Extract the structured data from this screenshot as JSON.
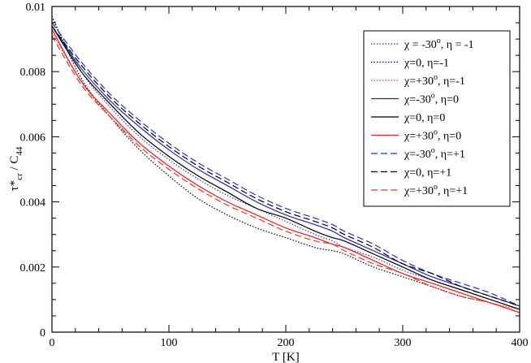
{
  "chart_data": {
    "type": "line",
    "xlabel": "T [K]",
    "ylabel_main": "τ*",
    "ylabel_sub": "cr",
    "ylabel_rest": " / C",
    "ylabel_sub2": "44",
    "xlim": [
      0,
      400
    ],
    "ylim": [
      0,
      0.01
    ],
    "x_ticks": [
      0,
      100,
      200,
      300,
      400
    ],
    "y_ticks": [
      0,
      0.002,
      0.004,
      0.006,
      0.008,
      0.01
    ],
    "x_tick_labels": [
      "0",
      "100",
      "200",
      "300",
      "400"
    ],
    "y_tick_labels": [
      "0",
      "0.002",
      "0.004",
      "0.006",
      "0.008",
      "0.01"
    ],
    "legend_position": "top-right",
    "grid": false,
    "x": [
      0,
      25,
      50,
      75,
      100,
      125,
      150,
      175,
      200,
      225,
      240,
      250,
      275,
      300,
      325,
      350,
      375,
      400
    ],
    "series": [
      {
        "name": "χ = -30°, η = -1",
        "color": "#3333cc",
        "dash": "dotted",
        "label_pre": "χ = -30",
        "label_post": ", η = -1",
        "values": [
          0.0096,
          0.008,
          0.0069,
          0.006,
          0.0053,
          0.0047,
          0.0042,
          0.0038,
          0.0034,
          0.003,
          0.0028,
          0.0026,
          0.0023,
          0.0019,
          0.0016,
          0.0013,
          0.001,
          0.0007
        ]
      },
      {
        "name": "χ=0, η=-1",
        "color": "#000000",
        "dash": "dotted",
        "label_pre": "χ=0, η=-1",
        "label_post": "",
        "values": [
          0.0097,
          0.0078,
          0.0066,
          0.0056,
          0.0048,
          0.0041,
          0.0036,
          0.0032,
          0.0029,
          0.0026,
          0.0025,
          0.0024,
          0.002,
          0.0017,
          0.0014,
          0.0011,
          0.0009,
          0.0006
        ]
      },
      {
        "name": "χ=+30°, η=-1",
        "color": "#ee3333",
        "dash": "dotted",
        "label_pre": "χ=+30",
        "label_post": ", η=-1",
        "values": [
          0.0092,
          0.0077,
          0.0066,
          0.0058,
          0.0051,
          0.0045,
          0.004,
          0.0036,
          0.0032,
          0.0029,
          0.0027,
          0.0026,
          0.0022,
          0.0018,
          0.0015,
          0.0012,
          0.0009,
          0.0007
        ]
      },
      {
        "name": "χ=-30°, η=0",
        "color": "#2222cc",
        "dash": "solid",
        "label_pre": "χ=-30",
        "label_post": ", η=0",
        "values": [
          0.0094,
          0.0081,
          0.0071,
          0.0063,
          0.0056,
          0.005,
          0.0045,
          0.004,
          0.0036,
          0.0033,
          0.0031,
          0.0029,
          0.0025,
          0.0021,
          0.0017,
          0.0014,
          0.0011,
          0.0008
        ]
      },
      {
        "name": "χ=0, η=0",
        "color": "#000000",
        "dash": "solid",
        "label_pre": "χ=0, η=0",
        "label_post": "",
        "values": [
          0.0094,
          0.008,
          0.007,
          0.0061,
          0.0054,
          0.0048,
          0.0043,
          0.0038,
          0.0035,
          0.0031,
          0.0029,
          0.0028,
          0.0024,
          0.002,
          0.0016,
          0.0013,
          0.001,
          0.0007
        ]
      },
      {
        "name": "χ=+30°, η=0",
        "color": "#ee2222",
        "dash": "solid",
        "label_pre": "χ=+30",
        "label_post": ", η=0",
        "values": [
          0.0093,
          0.0077,
          0.0067,
          0.0058,
          0.0051,
          0.0045,
          0.004,
          0.0036,
          0.0032,
          0.0029,
          0.0027,
          0.0026,
          0.0022,
          0.0018,
          0.0015,
          0.0012,
          0.0009,
          0.0006
        ]
      },
      {
        "name": "χ=-30°, η=+1",
        "color": "#2233cc",
        "dash": "dashed",
        "label_pre": "χ=-30",
        "label_post": ", η=+1",
        "values": [
          0.0095,
          0.0083,
          0.0073,
          0.0065,
          0.0058,
          0.0052,
          0.0047,
          0.0042,
          0.0038,
          0.0035,
          0.0033,
          0.0031,
          0.0027,
          0.0022,
          0.0018,
          0.0015,
          0.0012,
          0.0008
        ]
      },
      {
        "name": "χ=0, η=+1",
        "color": "#000000",
        "dash": "dashed",
        "label_pre": "χ=0, η=+1",
        "label_post": "",
        "values": [
          0.0094,
          0.0082,
          0.0072,
          0.0064,
          0.0057,
          0.0051,
          0.0046,
          0.0041,
          0.0037,
          0.0034,
          0.0032,
          0.003,
          0.0026,
          0.0021,
          0.0018,
          0.0014,
          0.0011,
          0.0008
        ]
      },
      {
        "name": "χ=+30°, η=+1",
        "color": "#ee3333",
        "dash": "dashed",
        "label_pre": "χ=+30",
        "label_post": ", η=+1",
        "values": [
          0.0091,
          0.0076,
          0.0066,
          0.0057,
          0.005,
          0.0044,
          0.0039,
          0.0035,
          0.0031,
          0.0028,
          0.0027,
          0.0025,
          0.0021,
          0.0018,
          0.0014,
          0.0011,
          0.0009,
          0.0006
        ]
      }
    ]
  }
}
